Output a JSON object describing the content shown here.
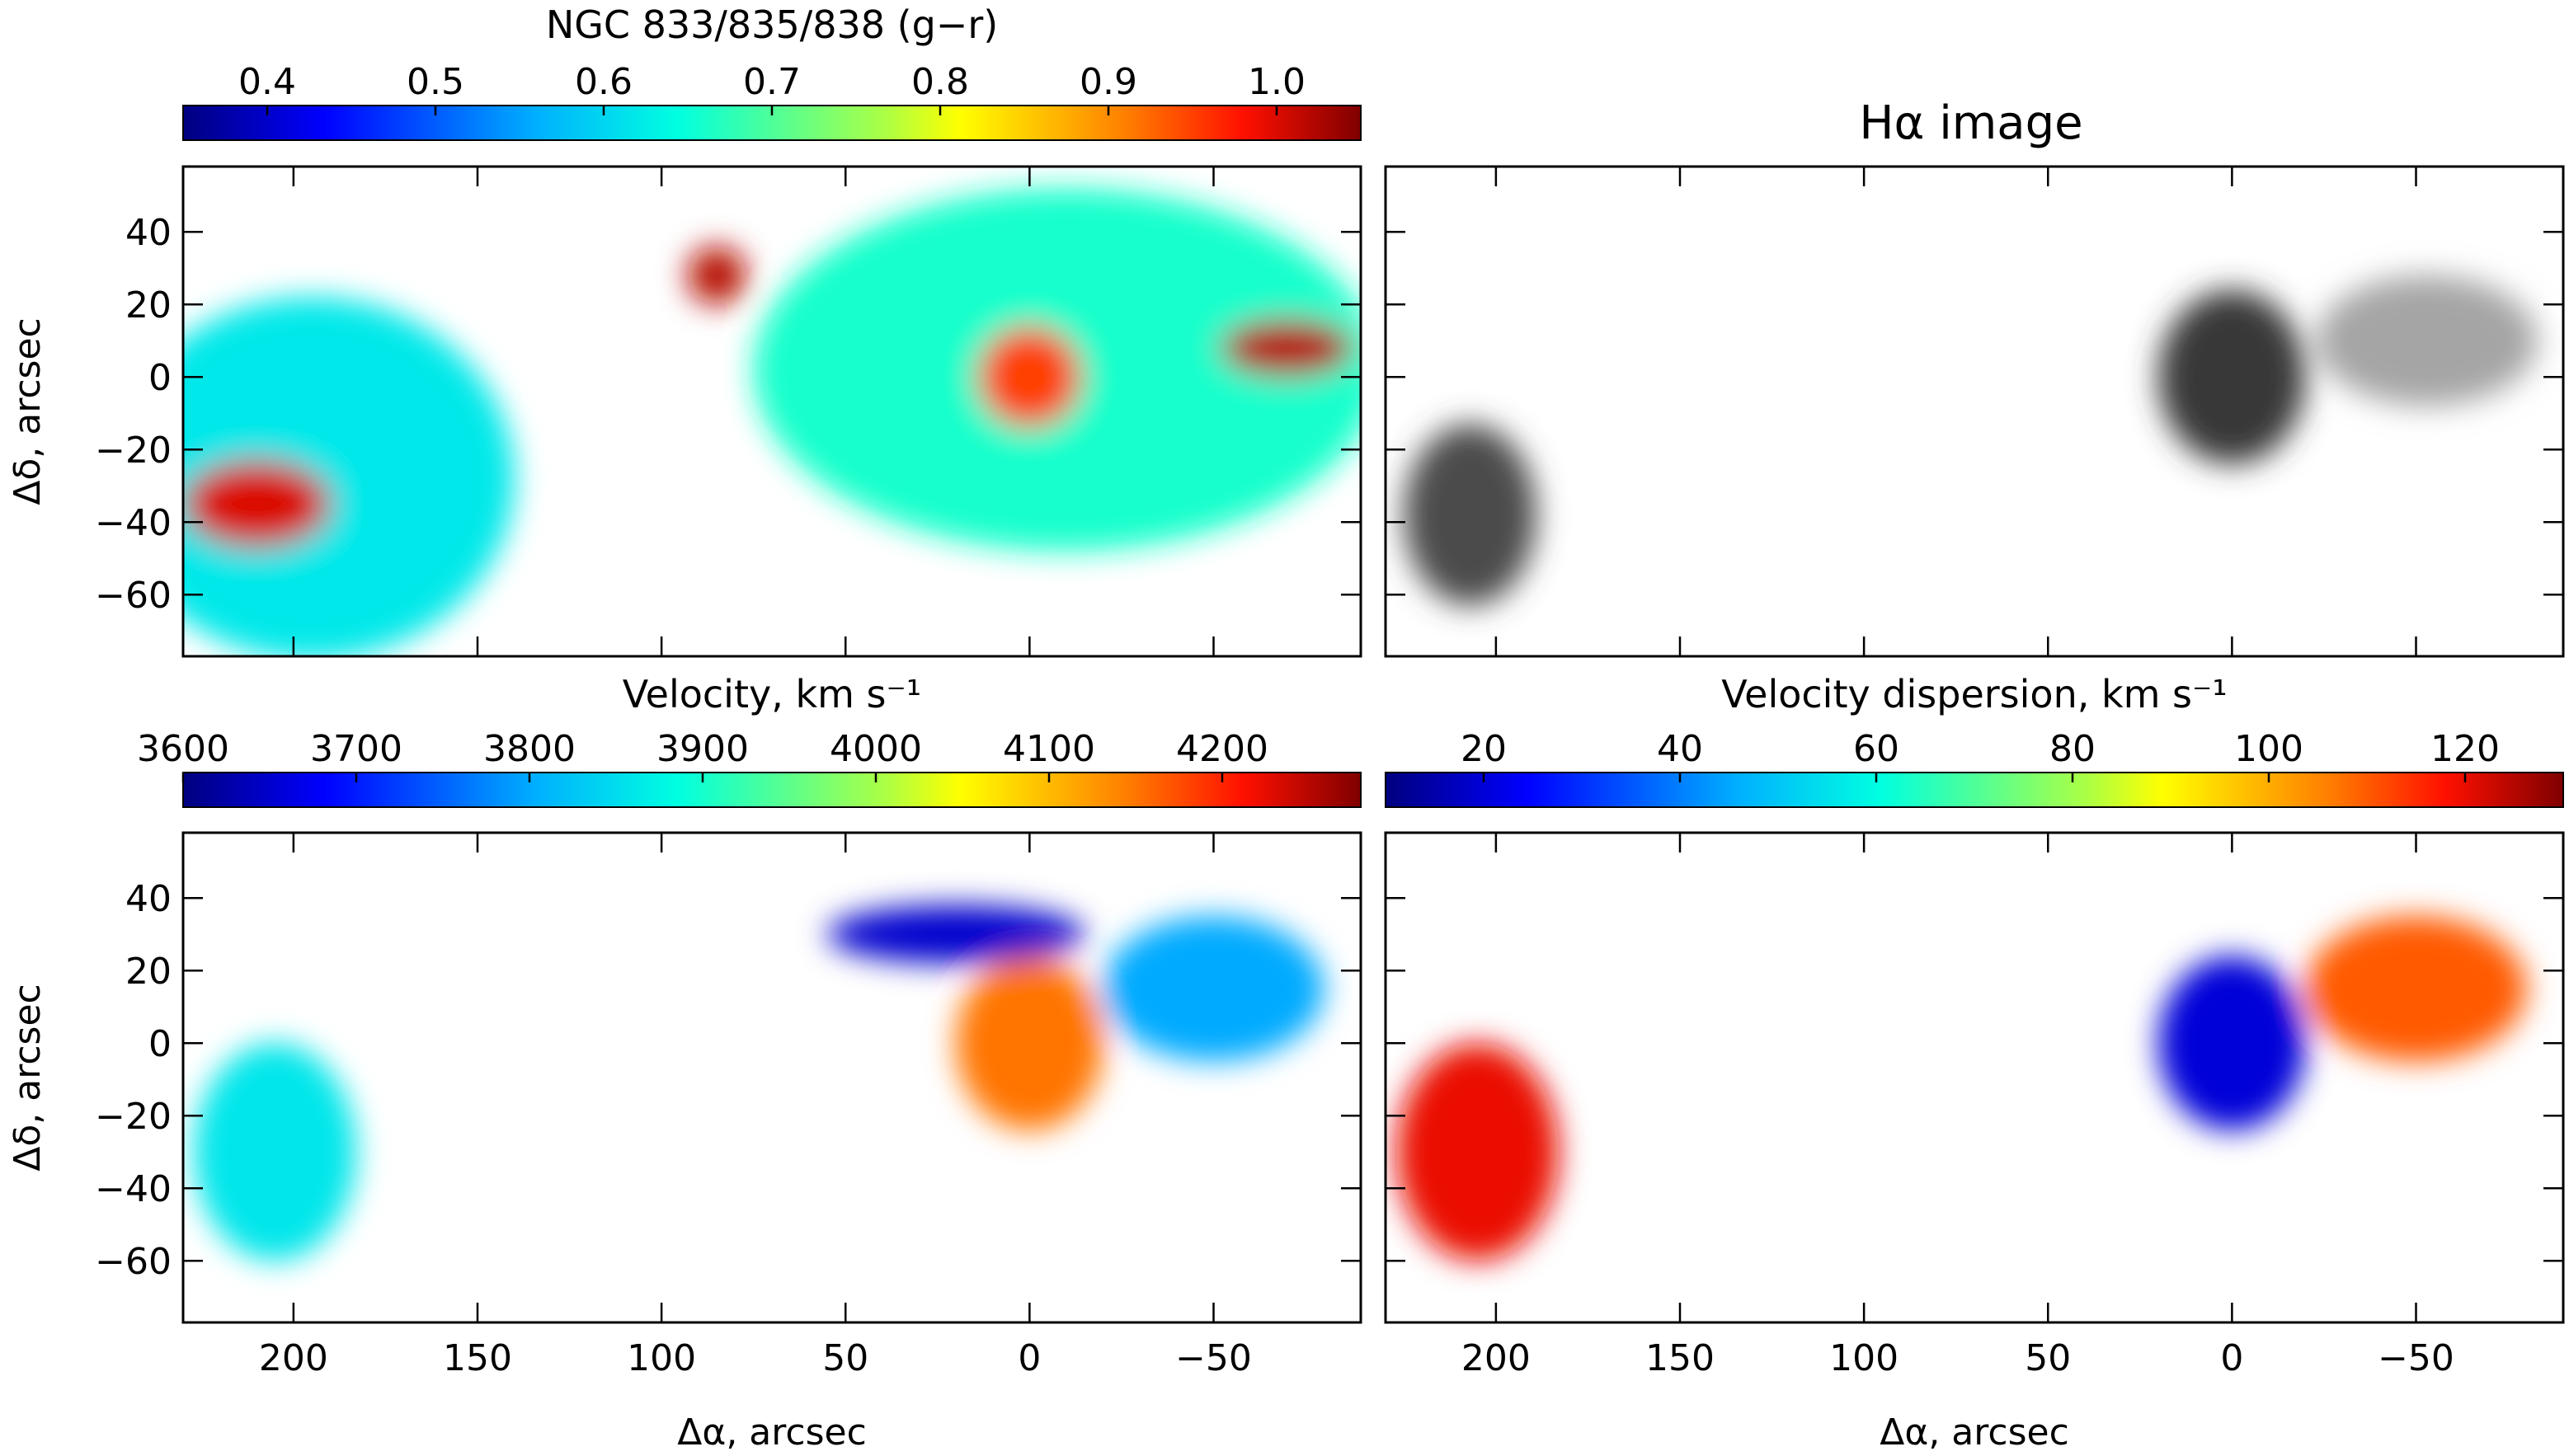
{
  "chart_data": [
    {
      "id": "panel-color",
      "type": "heatmap",
      "title": "NGC 833/835/838 (g−r)",
      "colorbar": {
        "min": 0.35,
        "max": 1.05,
        "colormap": "rainbow",
        "ticks": [
          0.4,
          0.5,
          0.6,
          0.7,
          0.8,
          0.9,
          1.0
        ],
        "tick_labels": [
          "0.4",
          "0.5",
          "0.6",
          "0.7",
          "0.8",
          "0.9",
          "1.0"
        ]
      },
      "xlim": [
        230,
        -90
      ],
      "ylim": [
        -77,
        58
      ],
      "xticks": [
        200,
        150,
        100,
        50,
        0,
        -50
      ],
      "yticks": [
        40,
        20,
        0,
        -20,
        -40,
        -60
      ],
      "ytick_labels": [
        "40",
        "20",
        "0",
        "−20",
        "−40",
        "−60"
      ],
      "ylabel": "Δδ, arcsec",
      "xlabel": "",
      "blobs": [
        {
          "x": 195,
          "y": -28,
          "rx": 55,
          "ry": 50,
          "value": 0.62
        },
        {
          "x": 210,
          "y": -35,
          "rx": 20,
          "ry": 12,
          "value": 1.0
        },
        {
          "x": -10,
          "y": 2,
          "rx": 85,
          "ry": 50,
          "value": 0.66
        },
        {
          "x": 0,
          "y": 0,
          "rx": 14,
          "ry": 14,
          "value": 0.95
        },
        {
          "x": -70,
          "y": 8,
          "rx": 18,
          "ry": 8,
          "value": 1.02
        },
        {
          "x": 85,
          "y": 28,
          "rx": 8,
          "ry": 8,
          "value": 1.02
        }
      ]
    },
    {
      "id": "panel-halpha",
      "type": "heatmap",
      "title": "Hα image",
      "xlim": [
        230,
        -90
      ],
      "ylim": [
        -77,
        58
      ],
      "xticks": [
        200,
        150,
        100,
        50,
        0,
        -50
      ],
      "yticks": [
        40,
        20,
        0,
        -20,
        -40,
        -60
      ],
      "colormap": "grayscale",
      "blobs": [
        {
          "x": 207,
          "y": -38,
          "rx": 18,
          "ry": 25,
          "value": 0.8
        },
        {
          "x": 0,
          "y": 0,
          "rx": 20,
          "ry": 24,
          "value": 0.9
        },
        {
          "x": -53,
          "y": 10,
          "rx": 30,
          "ry": 18,
          "value": 0.35
        }
      ]
    },
    {
      "id": "panel-velocity",
      "type": "heatmap",
      "title": "Velocity, km s⁻¹",
      "colorbar": {
        "min": 3600,
        "max": 4280,
        "colormap": "rainbow",
        "ticks": [
          3600,
          3700,
          3800,
          3900,
          4000,
          4100,
          4200
        ],
        "tick_labels": [
          "3600",
          "3700",
          "3800",
          "3900",
          "4000",
          "4100",
          "4200"
        ]
      },
      "xlim": [
        230,
        -90
      ],
      "ylim": [
        -77,
        58
      ],
      "xticks": [
        200,
        150,
        100,
        50,
        0,
        -50
      ],
      "xtick_labels": [
        "200",
        "150",
        "100",
        "50",
        "0",
        "−50"
      ],
      "yticks": [
        40,
        20,
        0,
        -20,
        -40,
        -60
      ],
      "ytick_labels": [
        "40",
        "20",
        "0",
        "−20",
        "−40",
        "−60"
      ],
      "xlabel": "Δα, arcsec",
      "ylabel": "Δδ, arcsec",
      "blobs": [
        {
          "x": 205,
          "y": -30,
          "rx": 22,
          "ry": 30,
          "value": 3860
        },
        {
          "x": 0,
          "y": 0,
          "rx": 20,
          "ry": 24,
          "value": 4150
        },
        {
          "x": -50,
          "y": 15,
          "rx": 30,
          "ry": 20,
          "value": 3800
        },
        {
          "x": 20,
          "y": 30,
          "rx": 35,
          "ry": 8,
          "value": 3650
        }
      ]
    },
    {
      "id": "panel-dispersion",
      "type": "heatmap",
      "title": "Velocity dispersion, km s⁻¹",
      "colorbar": {
        "min": 10,
        "max": 130,
        "colormap": "rainbow",
        "ticks": [
          20,
          40,
          60,
          80,
          100,
          120
        ],
        "tick_labels": [
          "20",
          "40",
          "60",
          "80",
          "100",
          "120"
        ]
      },
      "xlim": [
        230,
        -90
      ],
      "ylim": [
        -77,
        58
      ],
      "xticks": [
        200,
        150,
        100,
        50,
        0,
        -50
      ],
      "xtick_labels": [
        "200",
        "150",
        "100",
        "50",
        "0",
        "−50"
      ],
      "yticks": [
        40,
        20,
        0,
        -20,
        -40,
        -60
      ],
      "xlabel": "Δα, arcsec",
      "blobs": [
        {
          "x": 205,
          "y": -30,
          "rx": 22,
          "ry": 30,
          "value": 120
        },
        {
          "x": 0,
          "y": 0,
          "rx": 20,
          "ry": 24,
          "value": 20
        },
        {
          "x": -50,
          "y": 15,
          "rx": 30,
          "ry": 20,
          "value": 110
        }
      ]
    }
  ]
}
